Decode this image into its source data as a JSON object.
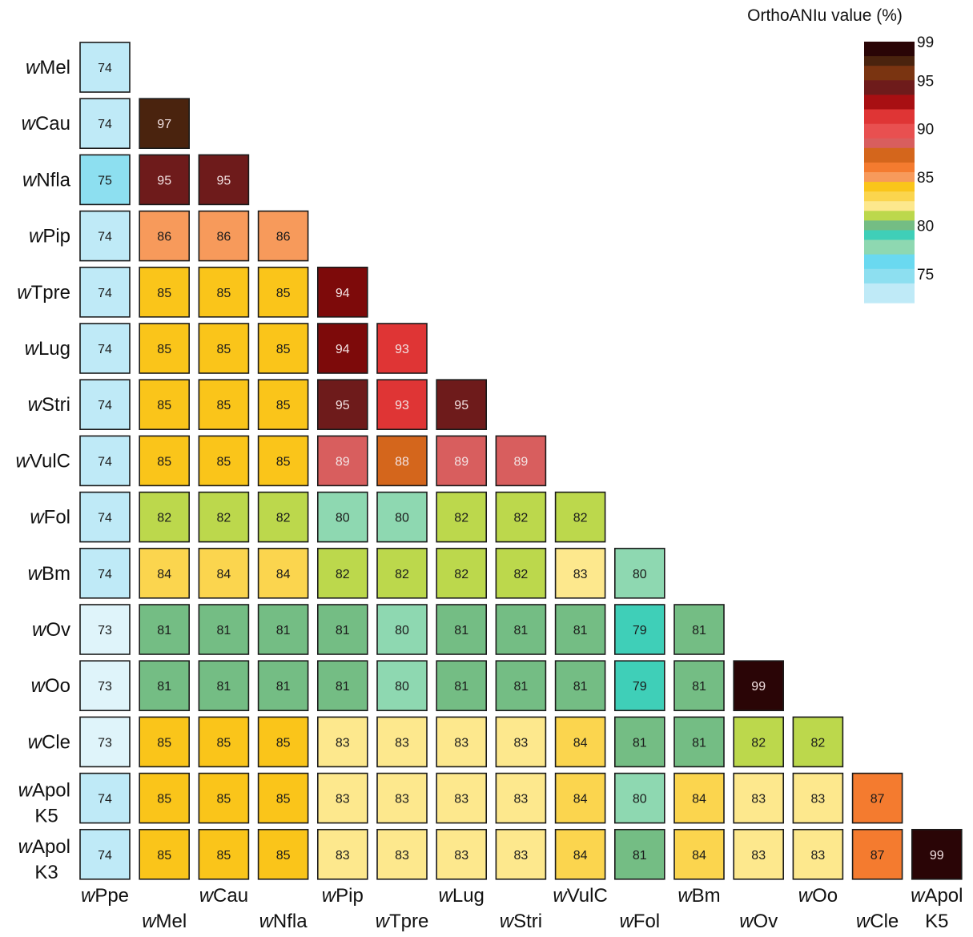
{
  "chart_data": {
    "type": "heatmap",
    "layout": "lower-triangular",
    "colorbar": {
      "title": "OrthoANIu value (%)",
      "ticks": [
        "99",
        "95",
        "90",
        "85",
        "80",
        "75"
      ],
      "min": 72,
      "max": 99,
      "placement": "top-right"
    },
    "row_labels": [
      {
        "italic": "w",
        "rest": "Mel",
        "line2": ""
      },
      {
        "italic": "w",
        "rest": "Cau",
        "line2": ""
      },
      {
        "italic": "w",
        "rest": "Nfla",
        "line2": ""
      },
      {
        "italic": "w",
        "rest": "Pip",
        "line2": ""
      },
      {
        "italic": "w",
        "rest": "Tpre",
        "line2": ""
      },
      {
        "italic": "w",
        "rest": "Lug",
        "line2": ""
      },
      {
        "italic": "w",
        "rest": "Stri",
        "line2": ""
      },
      {
        "italic": "w",
        "rest": "VulC",
        "line2": ""
      },
      {
        "italic": "w",
        "rest": "Fol",
        "line2": ""
      },
      {
        "italic": "w",
        "rest": "Bm",
        "line2": ""
      },
      {
        "italic": "w",
        "rest": "Ov",
        "line2": ""
      },
      {
        "italic": "w",
        "rest": "Oo",
        "line2": ""
      },
      {
        "italic": "w",
        "rest": "Cle",
        "line2": ""
      },
      {
        "italic": "w",
        "rest": "Apol",
        "line2": "K5"
      },
      {
        "italic": "w",
        "rest": "Apol",
        "line2": "K3"
      }
    ],
    "col_labels": [
      {
        "italic": "w",
        "rest": "Ppe",
        "line2": ""
      },
      {
        "italic": "w",
        "rest": "Mel",
        "line2": ""
      },
      {
        "italic": "w",
        "rest": "Cau",
        "line2": ""
      },
      {
        "italic": "w",
        "rest": "Nfla",
        "line2": ""
      },
      {
        "italic": "w",
        "rest": "Pip",
        "line2": ""
      },
      {
        "italic": "w",
        "rest": "Tpre",
        "line2": ""
      },
      {
        "italic": "w",
        "rest": "Lug",
        "line2": ""
      },
      {
        "italic": "w",
        "rest": "Stri",
        "line2": ""
      },
      {
        "italic": "w",
        "rest": "VulC",
        "line2": ""
      },
      {
        "italic": "w",
        "rest": "Fol",
        "line2": ""
      },
      {
        "italic": "w",
        "rest": "Bm",
        "line2": ""
      },
      {
        "italic": "w",
        "rest": "Ov",
        "line2": ""
      },
      {
        "italic": "w",
        "rest": "Oo",
        "line2": ""
      },
      {
        "italic": "w",
        "rest": "Cle",
        "line2": ""
      },
      {
        "italic": "w",
        "rest": "Apol",
        "line2": "K5"
      }
    ],
    "values": [
      [
        74
      ],
      [
        74,
        97
      ],
      [
        75,
        95,
        95
      ],
      [
        74,
        86,
        86,
        86
      ],
      [
        74,
        85,
        85,
        85,
        94
      ],
      [
        74,
        85,
        85,
        85,
        94,
        93
      ],
      [
        74,
        85,
        85,
        85,
        95,
        93,
        95
      ],
      [
        74,
        85,
        85,
        85,
        89,
        88,
        89,
        89
      ],
      [
        74,
        82,
        82,
        82,
        80,
        80,
        82,
        82,
        82
      ],
      [
        74,
        84,
        84,
        84,
        82,
        82,
        82,
        82,
        83,
        80
      ],
      [
        73,
        81,
        81,
        81,
        81,
        80,
        81,
        81,
        81,
        79,
        81
      ],
      [
        73,
        81,
        81,
        81,
        81,
        80,
        81,
        81,
        81,
        79,
        81,
        99
      ],
      [
        73,
        85,
        85,
        85,
        83,
        83,
        83,
        83,
        84,
        81,
        81,
        82,
        82
      ],
      [
        74,
        85,
        85,
        85,
        83,
        83,
        83,
        83,
        84,
        80,
        84,
        83,
        83,
        87
      ],
      [
        74,
        85,
        85,
        85,
        83,
        83,
        83,
        83,
        84,
        81,
        84,
        83,
        83,
        87,
        99
      ]
    ],
    "color_scale": {
      "73": "#dff4fa",
      "74": "#bfeaf7",
      "75": "#8ddff0",
      "79": "#3fcfb8",
      "80": "#8ed8b1",
      "81": "#74bd84",
      "82": "#bcd84c",
      "83": "#fde88d",
      "84": "#fbd54e",
      "85": "#fac51a",
      "86": "#f79a5b",
      "87": "#f47b2f",
      "88": "#d4661c",
      "89": "#d85e5e",
      "93": "#df3535",
      "94": "#7d0a0a",
      "95": "#6e1b1b",
      "97": "#4a230e",
      "99": "#2a0506"
    },
    "colorbar_stops": [
      {
        "v": 99,
        "color": "#2a0506"
      },
      {
        "v": 97.5,
        "color": "#4a230e"
      },
      {
        "v": 96.5,
        "color": "#7a3411"
      },
      {
        "v": 95,
        "color": "#6e1b1b"
      },
      {
        "v": 93.5,
        "color": "#a80f12"
      },
      {
        "v": 92,
        "color": "#df3535"
      },
      {
        "v": 90.5,
        "color": "#e85050"
      },
      {
        "v": 89,
        "color": "#d85e5e"
      },
      {
        "v": 88,
        "color": "#d4661c"
      },
      {
        "v": 86.5,
        "color": "#f47b2f"
      },
      {
        "v": 85.5,
        "color": "#f79a5b"
      },
      {
        "v": 84.5,
        "color": "#fac51a"
      },
      {
        "v": 83.5,
        "color": "#fbd54e"
      },
      {
        "v": 82.5,
        "color": "#fde88d"
      },
      {
        "v": 81.5,
        "color": "#bcd84c"
      },
      {
        "v": 80.5,
        "color": "#74bd84"
      },
      {
        "v": 79.5,
        "color": "#3fcfb8"
      },
      {
        "v": 78.5,
        "color": "#8ed8b1"
      },
      {
        "v": 77,
        "color": "#6ad9f0"
      },
      {
        "v": 75.5,
        "color": "#8ddff0"
      },
      {
        "v": 74,
        "color": "#bfeaf7"
      },
      {
        "v": 72,
        "color": "#eaf8fc"
      }
    ],
    "dark_text_threshold": 88,
    "border_color": "#1a1a1a"
  }
}
